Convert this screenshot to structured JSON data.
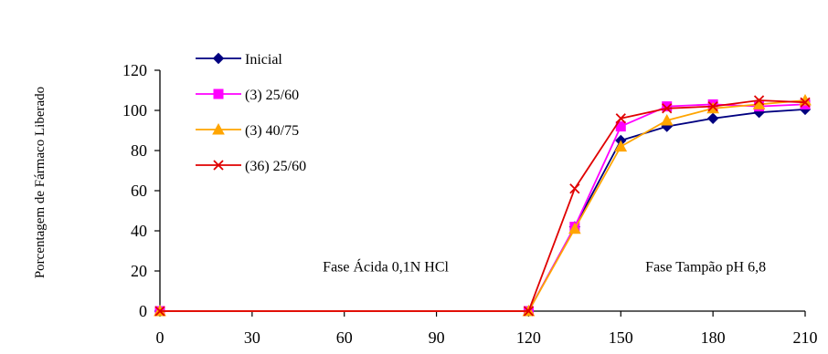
{
  "chart_data": {
    "type": "line",
    "title": "",
    "xlabel": "",
    "ylabel": "Porcentagem de Fármaco Liberado",
    "xlim": [
      0,
      210
    ],
    "ylim": [
      0,
      120
    ],
    "xticks": [
      0,
      30,
      60,
      90,
      120,
      150,
      180,
      210
    ],
    "yticks": [
      0,
      20,
      40,
      60,
      80,
      100,
      120
    ],
    "grid": false,
    "legend_position": "top-left",
    "annotations": [
      {
        "text": "Fase Ácida 0,1N HCl",
        "x": 53,
        "y": 22
      },
      {
        "text": "Fase Tampão pH 6,8",
        "x": 158,
        "y": 22
      }
    ],
    "series": [
      {
        "name": "Inicial",
        "color": "#000080",
        "marker": "diamond",
        "x": [
          0,
          120,
          135,
          150,
          165,
          180,
          195,
          210
        ],
        "y": [
          0,
          0,
          42,
          85,
          92,
          96,
          99,
          100.5
        ]
      },
      {
        "name": "(3) 25/60",
        "color": "#FF00FF",
        "marker": "square",
        "x": [
          0,
          120,
          135,
          150,
          165,
          180,
          195,
          210
        ],
        "y": [
          0,
          0,
          42,
          92,
          102,
          103,
          102,
          103
        ]
      },
      {
        "name": "(3) 40/75",
        "color": "#FFA500",
        "marker": "triangle",
        "x": [
          0,
          120,
          135,
          150,
          165,
          180,
          195,
          210
        ],
        "y": [
          0,
          0,
          41,
          82,
          95,
          101,
          103,
          105
        ]
      },
      {
        "name": "(36) 25/60",
        "color": "#E00000",
        "marker": "x",
        "x": [
          0,
          120,
          135,
          150,
          165,
          180,
          195,
          210
        ],
        "y": [
          0,
          0,
          61,
          96,
          101,
          102,
          105,
          104
        ]
      }
    ]
  }
}
